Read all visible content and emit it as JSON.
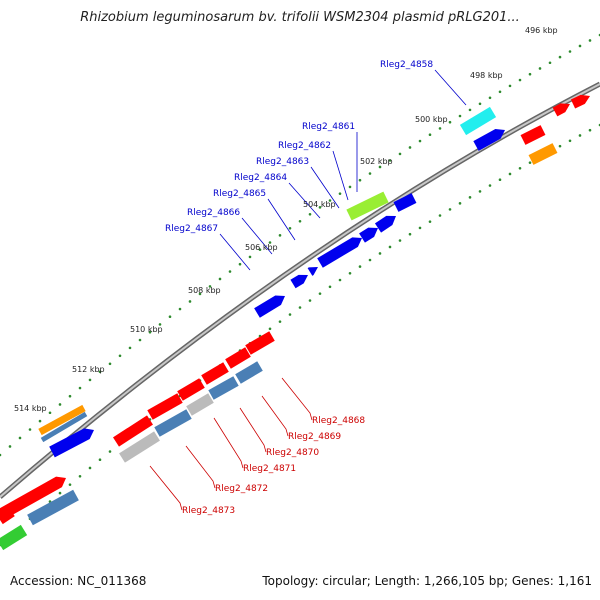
{
  "title": "Rhizobium leguminosarum bv. trifolii WSM2304 plasmid pRLG201...",
  "footer": {
    "accession": "Accession: NC_011368",
    "topology": "Topology: circular; Length: 1,266,105 bp; Genes: 1,161"
  },
  "colors": {
    "backbone": "#8a8a8a",
    "tick": "#2e8b2e",
    "label_blue": "#0000cc",
    "label_red": "#cc0000",
    "gene_red": "#ff0000",
    "gene_blue": "#0000ee",
    "gene_cyan": "#22eeee",
    "gene_lime": "#99ee33",
    "gene_orange": "#ff9900",
    "gene_steel": "#4a7fb5",
    "gene_gray": "#bbbbbb",
    "gene_green": "#33cc33"
  },
  "kbp_labels": [
    "496 kbp",
    "498 kbp",
    "500 kbp",
    "502 kbp",
    "504 kbp",
    "506 kbp",
    "508 kbp",
    "510 kbp",
    "512 kbp",
    "514 kbp"
  ],
  "forward_labels": [
    "Rleg2_4858",
    "Rleg2_4861",
    "Rleg2_4862",
    "Rleg2_4863",
    "Rleg2_4864",
    "Rleg2_4865",
    "Rleg2_4866",
    "Rleg2_4867"
  ],
  "reverse_labels": [
    "Rleg2_4868",
    "Rleg2_4869",
    "Rleg2_4870",
    "Rleg2_4871",
    "Rleg2_4872",
    "Rleg2_4873"
  ]
}
